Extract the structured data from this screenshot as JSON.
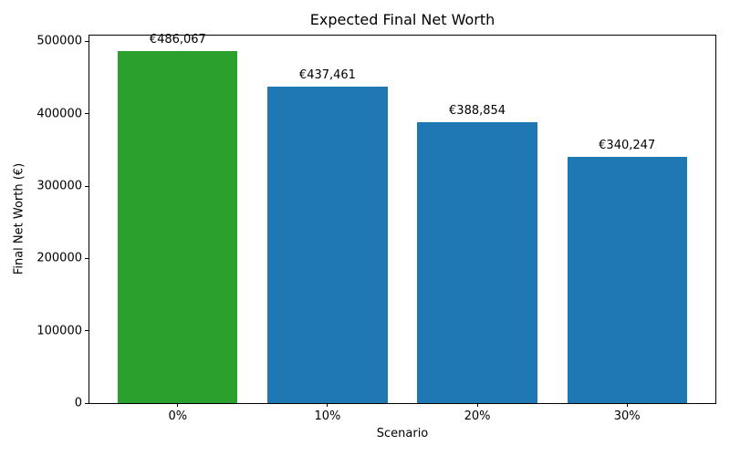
{
  "chart_data": {
    "type": "bar",
    "title": "Expected Final Net Worth",
    "xlabel": "Scenario",
    "ylabel": "Final Net Worth (€)",
    "categories": [
      "0%",
      "10%",
      "20%",
      "30%"
    ],
    "values": [
      486067,
      437461,
      388854,
      340247
    ],
    "bar_value_labels": [
      "€486,067",
      "€437,461",
      "€388,854",
      "€340,247"
    ],
    "bar_colors": [
      "#2ca02c",
      "#1f77b4",
      "#1f77b4",
      "#1f77b4"
    ],
    "ylim": [
      0,
      508000
    ],
    "yticks": [
      0,
      100000,
      200000,
      300000,
      400000,
      500000
    ],
    "ytick_labels": [
      "0",
      "100000",
      "200000",
      "300000",
      "400000",
      "500000"
    ],
    "xlim": [
      -0.59,
      3.59
    ],
    "bar_width_units": 0.8,
    "grid": false,
    "legend": null
  }
}
